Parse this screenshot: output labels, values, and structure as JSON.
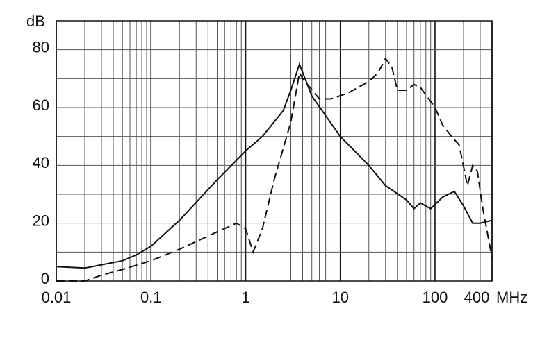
{
  "chart_data": {
    "type": "line",
    "x_label": "MHz",
    "y_label": "dB",
    "xscale": "log",
    "xlim": [
      0.01,
      400
    ],
    "ylim": [
      0,
      90
    ],
    "xticks": [
      0.01,
      0.1,
      1,
      10,
      100,
      400
    ],
    "x_minor_ticks": [
      0.02,
      0.03,
      0.04,
      0.05,
      0.06,
      0.07,
      0.08,
      0.09,
      0.2,
      0.3,
      0.4,
      0.5,
      0.6,
      0.7,
      0.8,
      0.9,
      2,
      3,
      4,
      5,
      6,
      7,
      8,
      9,
      20,
      30,
      40,
      50,
      60,
      70,
      80,
      90,
      200,
      300
    ],
    "yticks": [
      0,
      20,
      40,
      60,
      80
    ],
    "y_minor_ticks": [
      10,
      30,
      50,
      70
    ],
    "grid": true,
    "series": [
      {
        "color": "#111111",
        "dash": false,
        "x": [
          0.01,
          0.02,
          0.05,
          0.07,
          0.1,
          0.2,
          0.5,
          1,
          1.5,
          2.5,
          3,
          3.7,
          5,
          10,
          20,
          30,
          50,
          60,
          70,
          90,
          120,
          160,
          200,
          250,
          300,
          400
        ],
        "values": [
          5,
          4.5,
          7,
          9,
          12,
          21,
          35,
          45,
          50,
          59,
          66,
          75,
          64,
          50,
          40,
          33,
          28,
          25,
          27,
          25,
          29,
          31,
          26,
          20,
          20,
          21
        ]
      },
      {
        "color": "#111111",
        "dash": true,
        "x": [
          0.01,
          0.02,
          0.03,
          0.05,
          0.1,
          0.2,
          0.5,
          0.8,
          1,
          1.2,
          1.5,
          2,
          3,
          3.7,
          4,
          6,
          8,
          12,
          20,
          25,
          30,
          35,
          40,
          50,
          60,
          70,
          100,
          120,
          150,
          180,
          220,
          250,
          280,
          320,
          400
        ],
        "values": [
          0,
          0,
          2,
          4,
          7,
          11,
          17,
          20,
          18,
          10,
          18,
          35,
          55,
          72,
          70,
          63,
          63,
          65,
          69,
          72,
          77,
          74,
          66,
          66,
          68,
          67,
          60,
          54,
          50,
          47,
          33,
          40,
          38,
          25,
          8
        ]
      }
    ]
  }
}
